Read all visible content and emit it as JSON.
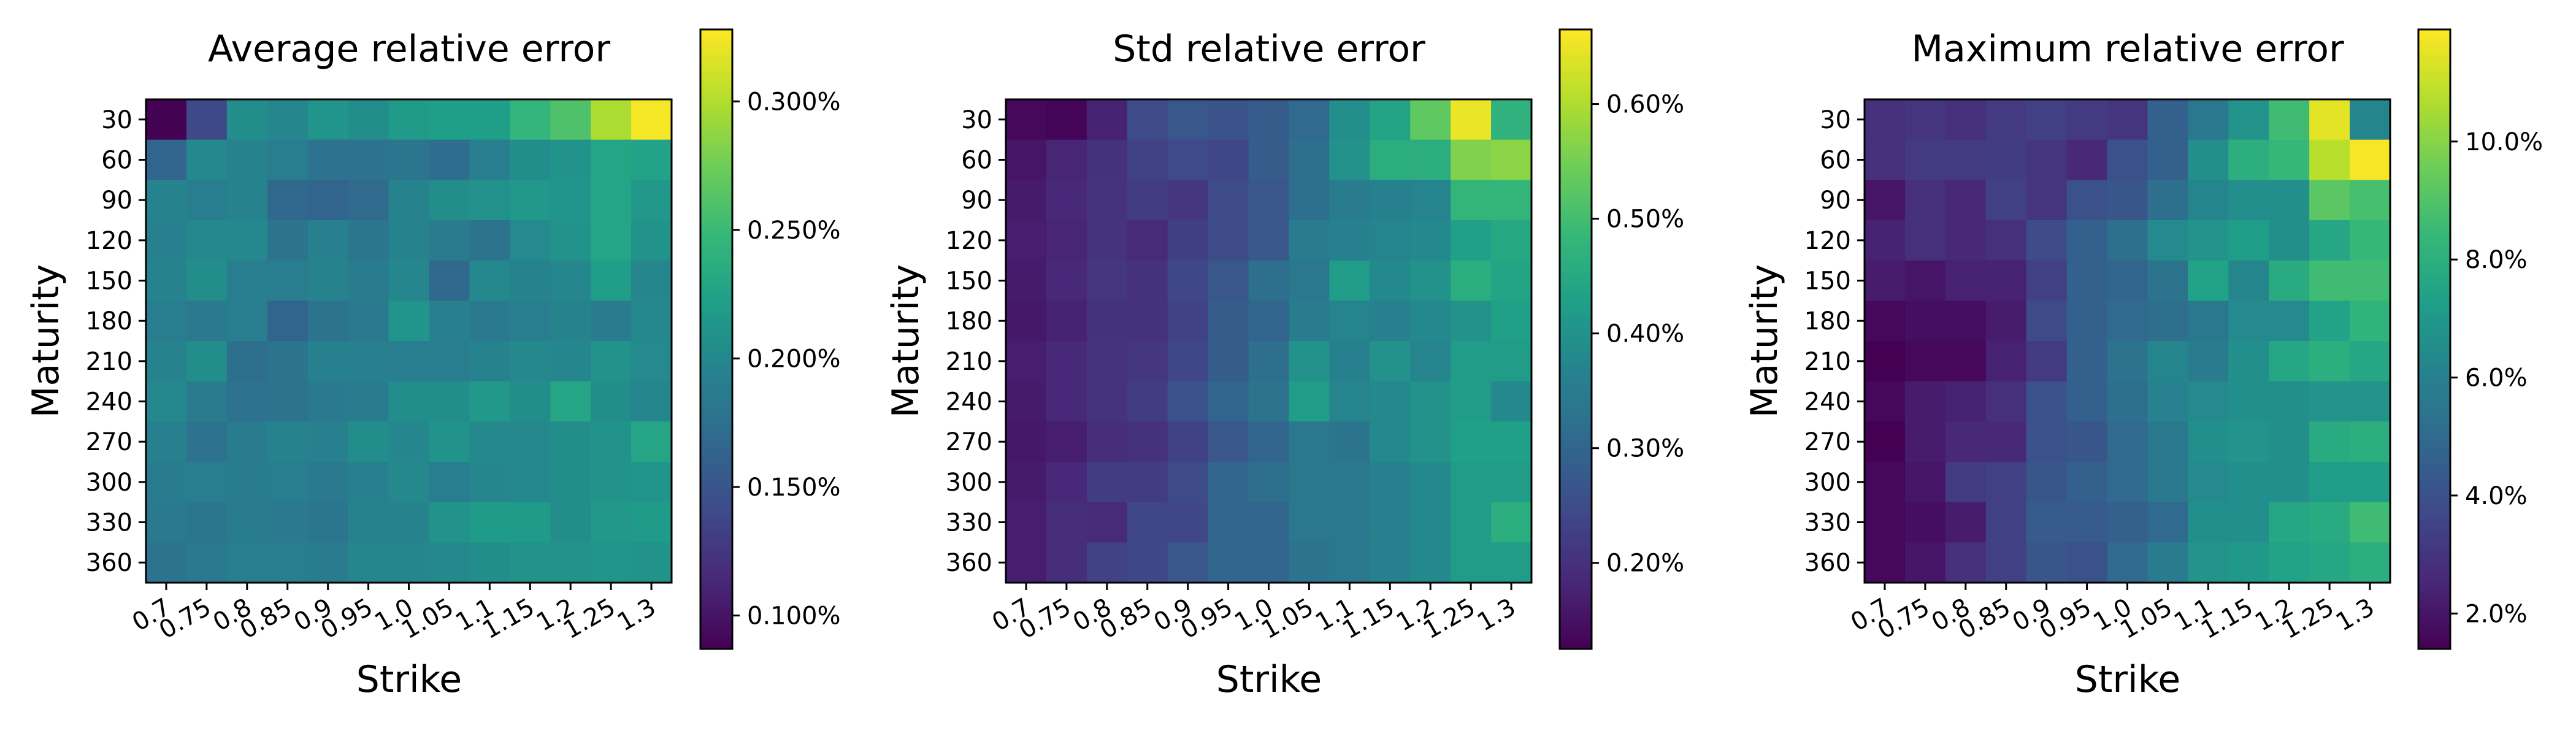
{
  "chart_data": [
    {
      "type": "heatmap",
      "title": "Average relative error",
      "xlabel": "Strike",
      "ylabel": "Maturity",
      "x": [
        "0.7",
        "0.75",
        "0.8",
        "0.85",
        "0.9",
        "0.95",
        "1.0",
        "1.05",
        "1.1",
        "1.15",
        "1.2",
        "1.25",
        "1.3"
      ],
      "y": [
        "30",
        "60",
        "90",
        "120",
        "150",
        "180",
        "210",
        "240",
        "270",
        "300",
        "330",
        "360"
      ],
      "values": [
        [
          0.088,
          0.14,
          0.205,
          0.198,
          0.212,
          0.205,
          0.218,
          0.222,
          0.222,
          0.245,
          0.26,
          0.298,
          0.325
        ],
        [
          0.165,
          0.2,
          0.195,
          0.19,
          0.178,
          0.178,
          0.182,
          0.172,
          0.19,
          0.205,
          0.21,
          0.228,
          0.225
        ],
        [
          0.195,
          0.19,
          0.195,
          0.168,
          0.165,
          0.17,
          0.195,
          0.205,
          0.208,
          0.215,
          0.212,
          0.228,
          0.215
        ],
        [
          0.192,
          0.2,
          0.2,
          0.18,
          0.192,
          0.182,
          0.195,
          0.188,
          0.18,
          0.202,
          0.21,
          0.228,
          0.21
        ],
        [
          0.195,
          0.205,
          0.19,
          0.19,
          0.195,
          0.188,
          0.198,
          0.168,
          0.2,
          0.195,
          0.198,
          0.22,
          0.198
        ],
        [
          0.19,
          0.185,
          0.19,
          0.165,
          0.18,
          0.185,
          0.212,
          0.192,
          0.185,
          0.19,
          0.195,
          0.188,
          0.2
        ],
        [
          0.195,
          0.205,
          0.175,
          0.18,
          0.192,
          0.192,
          0.19,
          0.19,
          0.195,
          0.2,
          0.198,
          0.21,
          0.202
        ],
        [
          0.2,
          0.188,
          0.178,
          0.18,
          0.185,
          0.188,
          0.205,
          0.205,
          0.215,
          0.205,
          0.228,
          0.205,
          0.198
        ],
        [
          0.192,
          0.178,
          0.188,
          0.195,
          0.192,
          0.205,
          0.198,
          0.21,
          0.2,
          0.2,
          0.205,
          0.21,
          0.228
        ],
        [
          0.188,
          0.19,
          0.188,
          0.19,
          0.185,
          0.192,
          0.2,
          0.19,
          0.198,
          0.2,
          0.205,
          0.21,
          0.212
        ],
        [
          0.185,
          0.182,
          0.188,
          0.185,
          0.182,
          0.195,
          0.195,
          0.21,
          0.218,
          0.218,
          0.205,
          0.215,
          0.218
        ],
        [
          0.18,
          0.185,
          0.19,
          0.19,
          0.188,
          0.198,
          0.198,
          0.2,
          0.205,
          0.21,
          0.21,
          0.212,
          0.21
        ]
      ],
      "value_range": [
        0.087,
        0.328
      ],
      "colormap": "viridis",
      "colorbar_ticks": [
        {
          "value": 0.1,
          "label": "0.100%"
        },
        {
          "value": 0.15,
          "label": "0.150%"
        },
        {
          "value": 0.2,
          "label": "0.200%"
        },
        {
          "value": 0.25,
          "label": "0.250%"
        },
        {
          "value": 0.3,
          "label": "0.300%"
        }
      ]
    },
    {
      "type": "heatmap",
      "title": "Std relative error",
      "xlabel": "Strike",
      "ylabel": "Maturity",
      "x": [
        "0.7",
        "0.75",
        "0.8",
        "0.85",
        "0.9",
        "0.95",
        "1.0",
        "1.05",
        "1.1",
        "1.15",
        "1.2",
        "1.25",
        "1.3"
      ],
      "y": [
        "30",
        "60",
        "90",
        "120",
        "150",
        "180",
        "210",
        "240",
        "270",
        "300",
        "330",
        "360"
      ],
      "values": [
        [
          0.135,
          0.13,
          0.175,
          0.25,
          0.27,
          0.265,
          0.28,
          0.31,
          0.39,
          0.44,
          0.53,
          0.65,
          0.47
        ],
        [
          0.155,
          0.18,
          0.2,
          0.23,
          0.245,
          0.24,
          0.28,
          0.32,
          0.4,
          0.46,
          0.46,
          0.56,
          0.57
        ],
        [
          0.165,
          0.185,
          0.205,
          0.22,
          0.21,
          0.25,
          0.27,
          0.32,
          0.35,
          0.36,
          0.37,
          0.48,
          0.48
        ],
        [
          0.17,
          0.18,
          0.205,
          0.19,
          0.225,
          0.25,
          0.27,
          0.35,
          0.36,
          0.37,
          0.38,
          0.43,
          0.45
        ],
        [
          0.165,
          0.185,
          0.21,
          0.2,
          0.24,
          0.27,
          0.32,
          0.34,
          0.42,
          0.38,
          0.4,
          0.46,
          0.44
        ],
        [
          0.16,
          0.175,
          0.2,
          0.2,
          0.23,
          0.28,
          0.3,
          0.35,
          0.37,
          0.36,
          0.38,
          0.4,
          0.43
        ],
        [
          0.17,
          0.185,
          0.205,
          0.21,
          0.24,
          0.28,
          0.32,
          0.4,
          0.36,
          0.4,
          0.37,
          0.42,
          0.42
        ],
        [
          0.165,
          0.185,
          0.205,
          0.22,
          0.26,
          0.3,
          0.33,
          0.42,
          0.37,
          0.38,
          0.4,
          0.42,
          0.38
        ],
        [
          0.16,
          0.17,
          0.195,
          0.2,
          0.23,
          0.27,
          0.3,
          0.34,
          0.33,
          0.38,
          0.4,
          0.43,
          0.43
        ],
        [
          0.165,
          0.185,
          0.22,
          0.22,
          0.25,
          0.3,
          0.32,
          0.34,
          0.34,
          0.36,
          0.38,
          0.42,
          0.42
        ],
        [
          0.17,
          0.195,
          0.19,
          0.24,
          0.24,
          0.3,
          0.3,
          0.34,
          0.34,
          0.36,
          0.38,
          0.42,
          0.46
        ],
        [
          0.17,
          0.195,
          0.23,
          0.24,
          0.27,
          0.3,
          0.3,
          0.33,
          0.34,
          0.36,
          0.38,
          0.42,
          0.42
        ]
      ],
      "value_range": [
        0.125,
        0.665
      ],
      "colormap": "viridis",
      "colorbar_ticks": [
        {
          "value": 0.2,
          "label": "0.20%"
        },
        {
          "value": 0.3,
          "label": "0.30%"
        },
        {
          "value": 0.4,
          "label": "0.40%"
        },
        {
          "value": 0.5,
          "label": "0.50%"
        },
        {
          "value": 0.6,
          "label": "0.60%"
        }
      ]
    },
    {
      "type": "heatmap",
      "title": "Maximum relative error",
      "xlabel": "Strike",
      "ylabel": "Maturity",
      "x": [
        "0.7",
        "0.75",
        "0.8",
        "0.85",
        "0.9",
        "0.95",
        "1.0",
        "1.05",
        "1.1",
        "1.15",
        "1.2",
        "1.25",
        "1.3"
      ],
      "y": [
        "30",
        "60",
        "90",
        "120",
        "150",
        "180",
        "210",
        "240",
        "270",
        "300",
        "330",
        "360"
      ],
      "values": [
        [
          2.8,
          3.0,
          2.8,
          3.2,
          3.4,
          3.2,
          3.0,
          4.6,
          5.6,
          6.8,
          8.6,
          11.5,
          6.2
        ],
        [
          2.8,
          3.2,
          3.2,
          3.3,
          3.0,
          2.6,
          4.0,
          4.6,
          6.6,
          8.0,
          8.4,
          10.8,
          11.8
        ],
        [
          2.0,
          2.8,
          2.6,
          3.4,
          3.0,
          4.0,
          4.2,
          5.2,
          6.2,
          6.6,
          6.6,
          9.2,
          8.8
        ],
        [
          2.4,
          2.8,
          2.6,
          2.8,
          3.8,
          4.6,
          5.2,
          6.4,
          6.8,
          7.2,
          6.6,
          7.6,
          8.4
        ],
        [
          2.2,
          2.0,
          2.4,
          2.4,
          3.4,
          4.6,
          4.8,
          5.4,
          7.4,
          6.2,
          7.8,
          8.6,
          8.6
        ],
        [
          1.6,
          1.8,
          1.8,
          2.2,
          3.8,
          4.6,
          5.0,
          5.2,
          5.6,
          6.4,
          6.4,
          7.4,
          8.2
        ],
        [
          1.4,
          1.6,
          1.6,
          2.4,
          3.2,
          4.6,
          5.4,
          6.2,
          5.8,
          6.6,
          7.6,
          8.0,
          7.6
        ],
        [
          1.6,
          2.2,
          2.4,
          2.8,
          4.0,
          4.6,
          5.2,
          6.0,
          6.4,
          6.6,
          6.6,
          6.8,
          6.8
        ],
        [
          1.4,
          2.2,
          2.6,
          2.6,
          4.0,
          4.2,
          5.0,
          5.6,
          6.6,
          6.8,
          6.6,
          7.8,
          8.0
        ],
        [
          1.6,
          2.0,
          3.2,
          3.4,
          4.2,
          4.6,
          5.0,
          5.6,
          6.4,
          6.6,
          6.6,
          7.2,
          7.2
        ],
        [
          1.6,
          1.8,
          2.2,
          3.4,
          4.4,
          4.4,
          4.6,
          5.0,
          6.6,
          6.6,
          7.6,
          7.8,
          8.6
        ],
        [
          1.6,
          2.0,
          2.8,
          3.4,
          4.2,
          4.0,
          5.0,
          5.8,
          6.8,
          7.0,
          7.4,
          7.6,
          8.0
        ]
      ],
      "value_range": [
        1.4,
        11.9
      ],
      "colormap": "viridis",
      "colorbar_ticks": [
        {
          "value": 2.0,
          "label": "2.0%"
        },
        {
          "value": 4.0,
          "label": "4.0%"
        },
        {
          "value": 6.0,
          "label": "6.0%"
        },
        {
          "value": 8.0,
          "label": "8.0%"
        },
        {
          "value": 10.0,
          "label": "10.0%"
        }
      ]
    }
  ]
}
